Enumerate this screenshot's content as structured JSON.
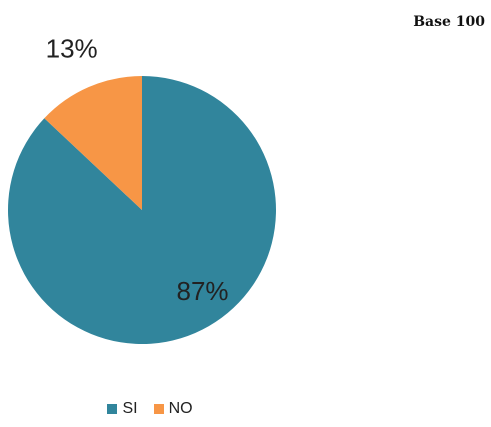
{
  "header": {
    "base_label": "Base 100"
  },
  "chart_data": {
    "type": "pie",
    "slices": [
      {
        "label": "SI",
        "value": 87,
        "display": "87%",
        "color": "#31859C"
      },
      {
        "label": "NO",
        "value": 13,
        "display": "13%",
        "color": "#F79646"
      }
    ],
    "legend_position": "bottom"
  }
}
